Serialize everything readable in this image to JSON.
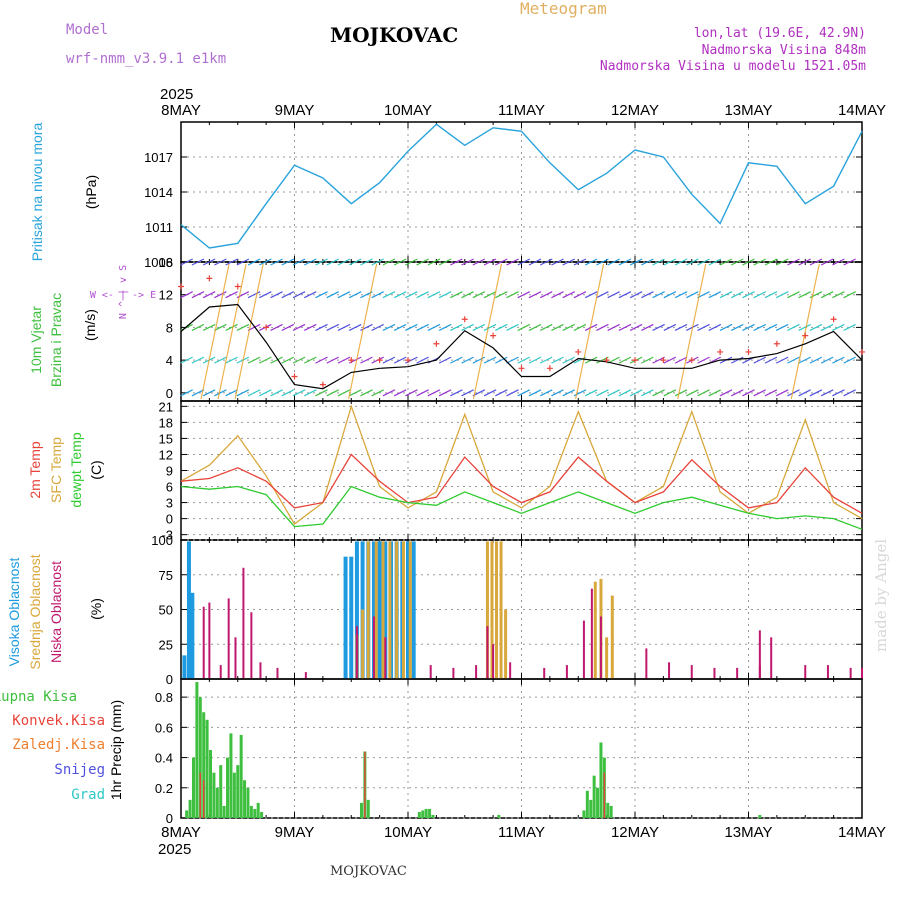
{
  "header": {
    "model_label": "Model",
    "model_name": "wrf-nmm_v3.9.1 e1km",
    "title": "MOJKOVAC",
    "chart_kind": "Meteogram",
    "lonlat": "lon,lat (19.6E, 42.9N)",
    "altitude": "Nadmorska Visina 848m",
    "model_altitude": "Nadmorska Visina u modelu 1521.05m"
  },
  "time_axis": {
    "year": "2025",
    "labels": [
      "8MAY",
      "9MAY",
      "10MAY",
      "11MAY",
      "12MAY",
      "13MAY",
      "14MAY"
    ]
  },
  "signature": "made by Angel",
  "footer": "MOJKOVAC",
  "colors": {
    "pressure": "#29a3dc",
    "temp2m": "#e8433a",
    "sfc": "#d8a83c",
    "dewpt": "#2ecb2e",
    "speed_line": "#000000",
    "gust_marker": "#e8433a",
    "high_cloud": "#1e9be0",
    "mid_cloud": "#d8a83c",
    "low_cloud": "#c0186e",
    "precip_total": "#3fbf3f",
    "precip_conv": "#e8433a",
    "snow": "#5050e0",
    "hail": "#2ec8c8",
    "freezing": "#f08030",
    "wind_label": "#b050d0"
  },
  "chart_data": [
    {
      "type": "line",
      "panel": "pressure",
      "ylabel": "Pritisak na nivou mora",
      "unit": "(hPa)",
      "yticks": [
        1008,
        1011,
        1014,
        1017
      ],
      "ylim": [
        1008,
        1020
      ],
      "x_days": [
        0,
        0.25,
        0.5,
        0.75,
        1,
        1.25,
        1.5,
        1.75,
        2,
        2.25,
        2.5,
        2.75,
        3,
        3.25,
        3.5,
        3.75,
        4,
        4.25,
        4.5,
        4.75,
        5,
        5.25,
        5.5,
        5.75,
        6
      ],
      "series": [
        {
          "values": [
            1011.2,
            1009.2,
            1009.6,
            1013.0,
            1016.3,
            1015.2,
            1013.0,
            1014.8,
            1017.5,
            1019.8,
            1018.0,
            1019.5,
            1019.2,
            1016.5,
            1014.2,
            1015.6,
            1017.6,
            1017.0,
            1013.8,
            1011.3,
            1016.5,
            1016.2,
            1013.0,
            1014.5,
            1019.2
          ]
        }
      ]
    },
    {
      "type": "line",
      "panel": "wind",
      "ylabel": "10m Vjetar Brzina i Pravac",
      "unit": "(m/s)",
      "yticks": [
        0,
        4,
        8,
        12,
        16
      ],
      "ylim": [
        -1,
        16
      ],
      "compass": [
        "W",
        "<-",
        "|",
        "->",
        "E",
        "N",
        "^",
        "|",
        "v",
        "S"
      ],
      "x_days": [
        0,
        0.25,
        0.5,
        0.75,
        1,
        1.25,
        1.5,
        1.75,
        2,
        2.25,
        2.5,
        2.75,
        3,
        3.25,
        3.5,
        3.75,
        4,
        4.25,
        4.5,
        4.75,
        5,
        5.25,
        5.5,
        5.75,
        6
      ],
      "series": [
        {
          "name": "speed",
          "values": [
            7.5,
            10.5,
            10.8,
            6.2,
            1.0,
            0.5,
            2.5,
            3.0,
            3.2,
            4.0,
            7.6,
            5.5,
            2.0,
            2.0,
            4.2,
            3.8,
            3.0,
            3.0,
            3.0,
            4.0,
            4.2,
            4.8,
            6.0,
            7.5,
            4.0
          ]
        },
        {
          "name": "gust",
          "values": [
            13,
            14,
            13,
            8,
            2,
            1,
            4,
            4,
            4,
            6,
            9,
            7,
            3,
            3,
            5,
            4,
            4,
            4,
            4,
            5,
            5,
            6,
            7,
            9,
            5
          ]
        }
      ]
    },
    {
      "type": "line",
      "panel": "temperature",
      "ylabels": [
        "2m Temp",
        "SFC Temp",
        "dewpt Temp"
      ],
      "unit": "(C)",
      "yticks": [
        -3,
        0,
        3,
        6,
        9,
        12,
        15,
        18,
        21
      ],
      "ylim": [
        -4,
        22
      ],
      "x_days": [
        0,
        0.25,
        0.5,
        0.75,
        1,
        1.25,
        1.5,
        1.75,
        2,
        2.25,
        2.5,
        2.75,
        3,
        3.25,
        3.5,
        3.75,
        4,
        4.25,
        4.5,
        4.75,
        5,
        5.25,
        5.5,
        5.75,
        6
      ],
      "series": [
        {
          "name": "2m Temp",
          "values": [
            7,
            7.5,
            9.5,
            7,
            2,
            3,
            12,
            7,
            3,
            4,
            11.5,
            6,
            3,
            5,
            11.5,
            7,
            3,
            5,
            11,
            6,
            2,
            3,
            9.5,
            4,
            1
          ]
        },
        {
          "name": "SFC Temp",
          "values": [
            7,
            10,
            15.5,
            8,
            -1,
            3,
            21,
            6,
            2,
            5,
            19.5,
            5,
            2,
            6,
            20,
            7,
            3,
            6,
            20,
            5,
            1,
            4,
            18.5,
            3,
            0
          ]
        },
        {
          "name": "dewpt Temp",
          "values": [
            6,
            5.5,
            6,
            4.5,
            -1.5,
            -1,
            6,
            4,
            3,
            2.5,
            5,
            3,
            1,
            3,
            5,
            3,
            1,
            3,
            4,
            2.5,
            1,
            0,
            0.5,
            0,
            -2
          ]
        }
      ]
    },
    {
      "type": "bar",
      "panel": "cloud",
      "ylabels": [
        "Visoka Oblacnost",
        "Srednja Oblacnost",
        "Niska Oblacnost"
      ],
      "unit": "(%)",
      "yticks": [
        0,
        25,
        50,
        75,
        100
      ],
      "ylim": [
        0,
        100
      ],
      "series": [
        {
          "name": "Visoka Oblacnost",
          "x_days": [
            0.03,
            0.07,
            0.1,
            1.45,
            1.5,
            1.55,
            1.6,
            1.65,
            1.7,
            1.75,
            1.8,
            1.85,
            1.9,
            1.95,
            2.0,
            2.05
          ],
          "values": [
            17,
            99,
            62,
            88,
            88,
            99,
            99,
            99,
            99,
            99,
            99,
            99,
            99,
            99,
            99,
            99
          ]
        },
        {
          "name": "Srednja Oblacnost",
          "x_days": [
            1.55,
            1.6,
            1.65,
            1.72,
            1.78,
            1.84,
            1.9,
            1.96,
            2.02,
            2.7,
            2.74,
            2.78,
            2.82,
            2.86,
            3.65,
            3.7,
            3.75,
            3.8
          ],
          "values": [
            32,
            50,
            99,
            99,
            99,
            99,
            99,
            99,
            99,
            99,
            99,
            99,
            99,
            50,
            70,
            72,
            30,
            60
          ]
        },
        {
          "name": "Niska Oblacnost",
          "x_days": [
            0.2,
            0.25,
            0.35,
            0.42,
            0.48,
            0.55,
            0.62,
            0.7,
            0.85,
            1.1,
            1.55,
            1.7,
            1.8,
            2.2,
            2.4,
            2.6,
            2.7,
            2.75,
            2.9,
            3.2,
            3.4,
            3.55,
            3.62,
            3.7,
            4.1,
            4.3,
            4.5,
            4.7,
            4.9,
            5.1,
            5.1,
            5.2,
            5.5,
            5.7,
            5.9,
            6.0
          ],
          "values": [
            52,
            55,
            10,
            58,
            30,
            80,
            48,
            12,
            8,
            5,
            38,
            45,
            30,
            10,
            8,
            10,
            38,
            25,
            12,
            8,
            10,
            42,
            65,
            45,
            22,
            12,
            10,
            8,
            8,
            10,
            35,
            30,
            10,
            10,
            8,
            8
          ]
        }
      ]
    },
    {
      "type": "bar",
      "panel": "precip",
      "ylabels": [
        "Ukupna Kisa",
        "Konvek.Kisa",
        "Zaledj.Kisa",
        "Snijeg",
        "Grad"
      ],
      "unit": "1hr Precip (mm)",
      "yticks": [
        0,
        0.2,
        0.4,
        0.6,
        0.8
      ],
      "ylim": [
        0,
        0.92
      ],
      "series": [
        {
          "name": "Ukupna Kisa",
          "x_days": [
            0.05,
            0.08,
            0.11,
            0.14,
            0.17,
            0.2,
            0.23,
            0.26,
            0.29,
            0.32,
            0.35,
            0.38,
            0.41,
            0.44,
            0.47,
            0.5,
            0.53,
            0.56,
            0.59,
            0.62,
            0.65,
            0.68,
            0.71,
            1.59,
            1.62,
            1.65,
            2.1,
            2.13,
            2.16,
            2.19,
            2.22,
            2.8,
            3.55,
            3.58,
            3.61,
            3.64,
            3.67,
            3.7,
            3.73,
            3.76,
            3.79,
            5.1
          ],
          "values": [
            0.05,
            0.12,
            0.4,
            0.9,
            0.8,
            0.7,
            0.65,
            0.45,
            0.3,
            0.2,
            0.35,
            0.08,
            0.4,
            0.56,
            0.3,
            0.35,
            0.55,
            0.25,
            0.2,
            0.08,
            0.06,
            0.1,
            0.04,
            0.1,
            0.44,
            0.12,
            0.04,
            0.05,
            0.06,
            0.06,
            0.02,
            0.02,
            0.05,
            0.18,
            0.12,
            0.28,
            0.2,
            0.5,
            0.4,
            0.1,
            0.08,
            0.02
          ]
        },
        {
          "name": "Konvek.Kisa",
          "x_days": [
            0.17,
            0.2,
            1.62,
            3.73
          ],
          "values": [
            0.3,
            0.25,
            0.44,
            0.3
          ]
        }
      ]
    }
  ]
}
